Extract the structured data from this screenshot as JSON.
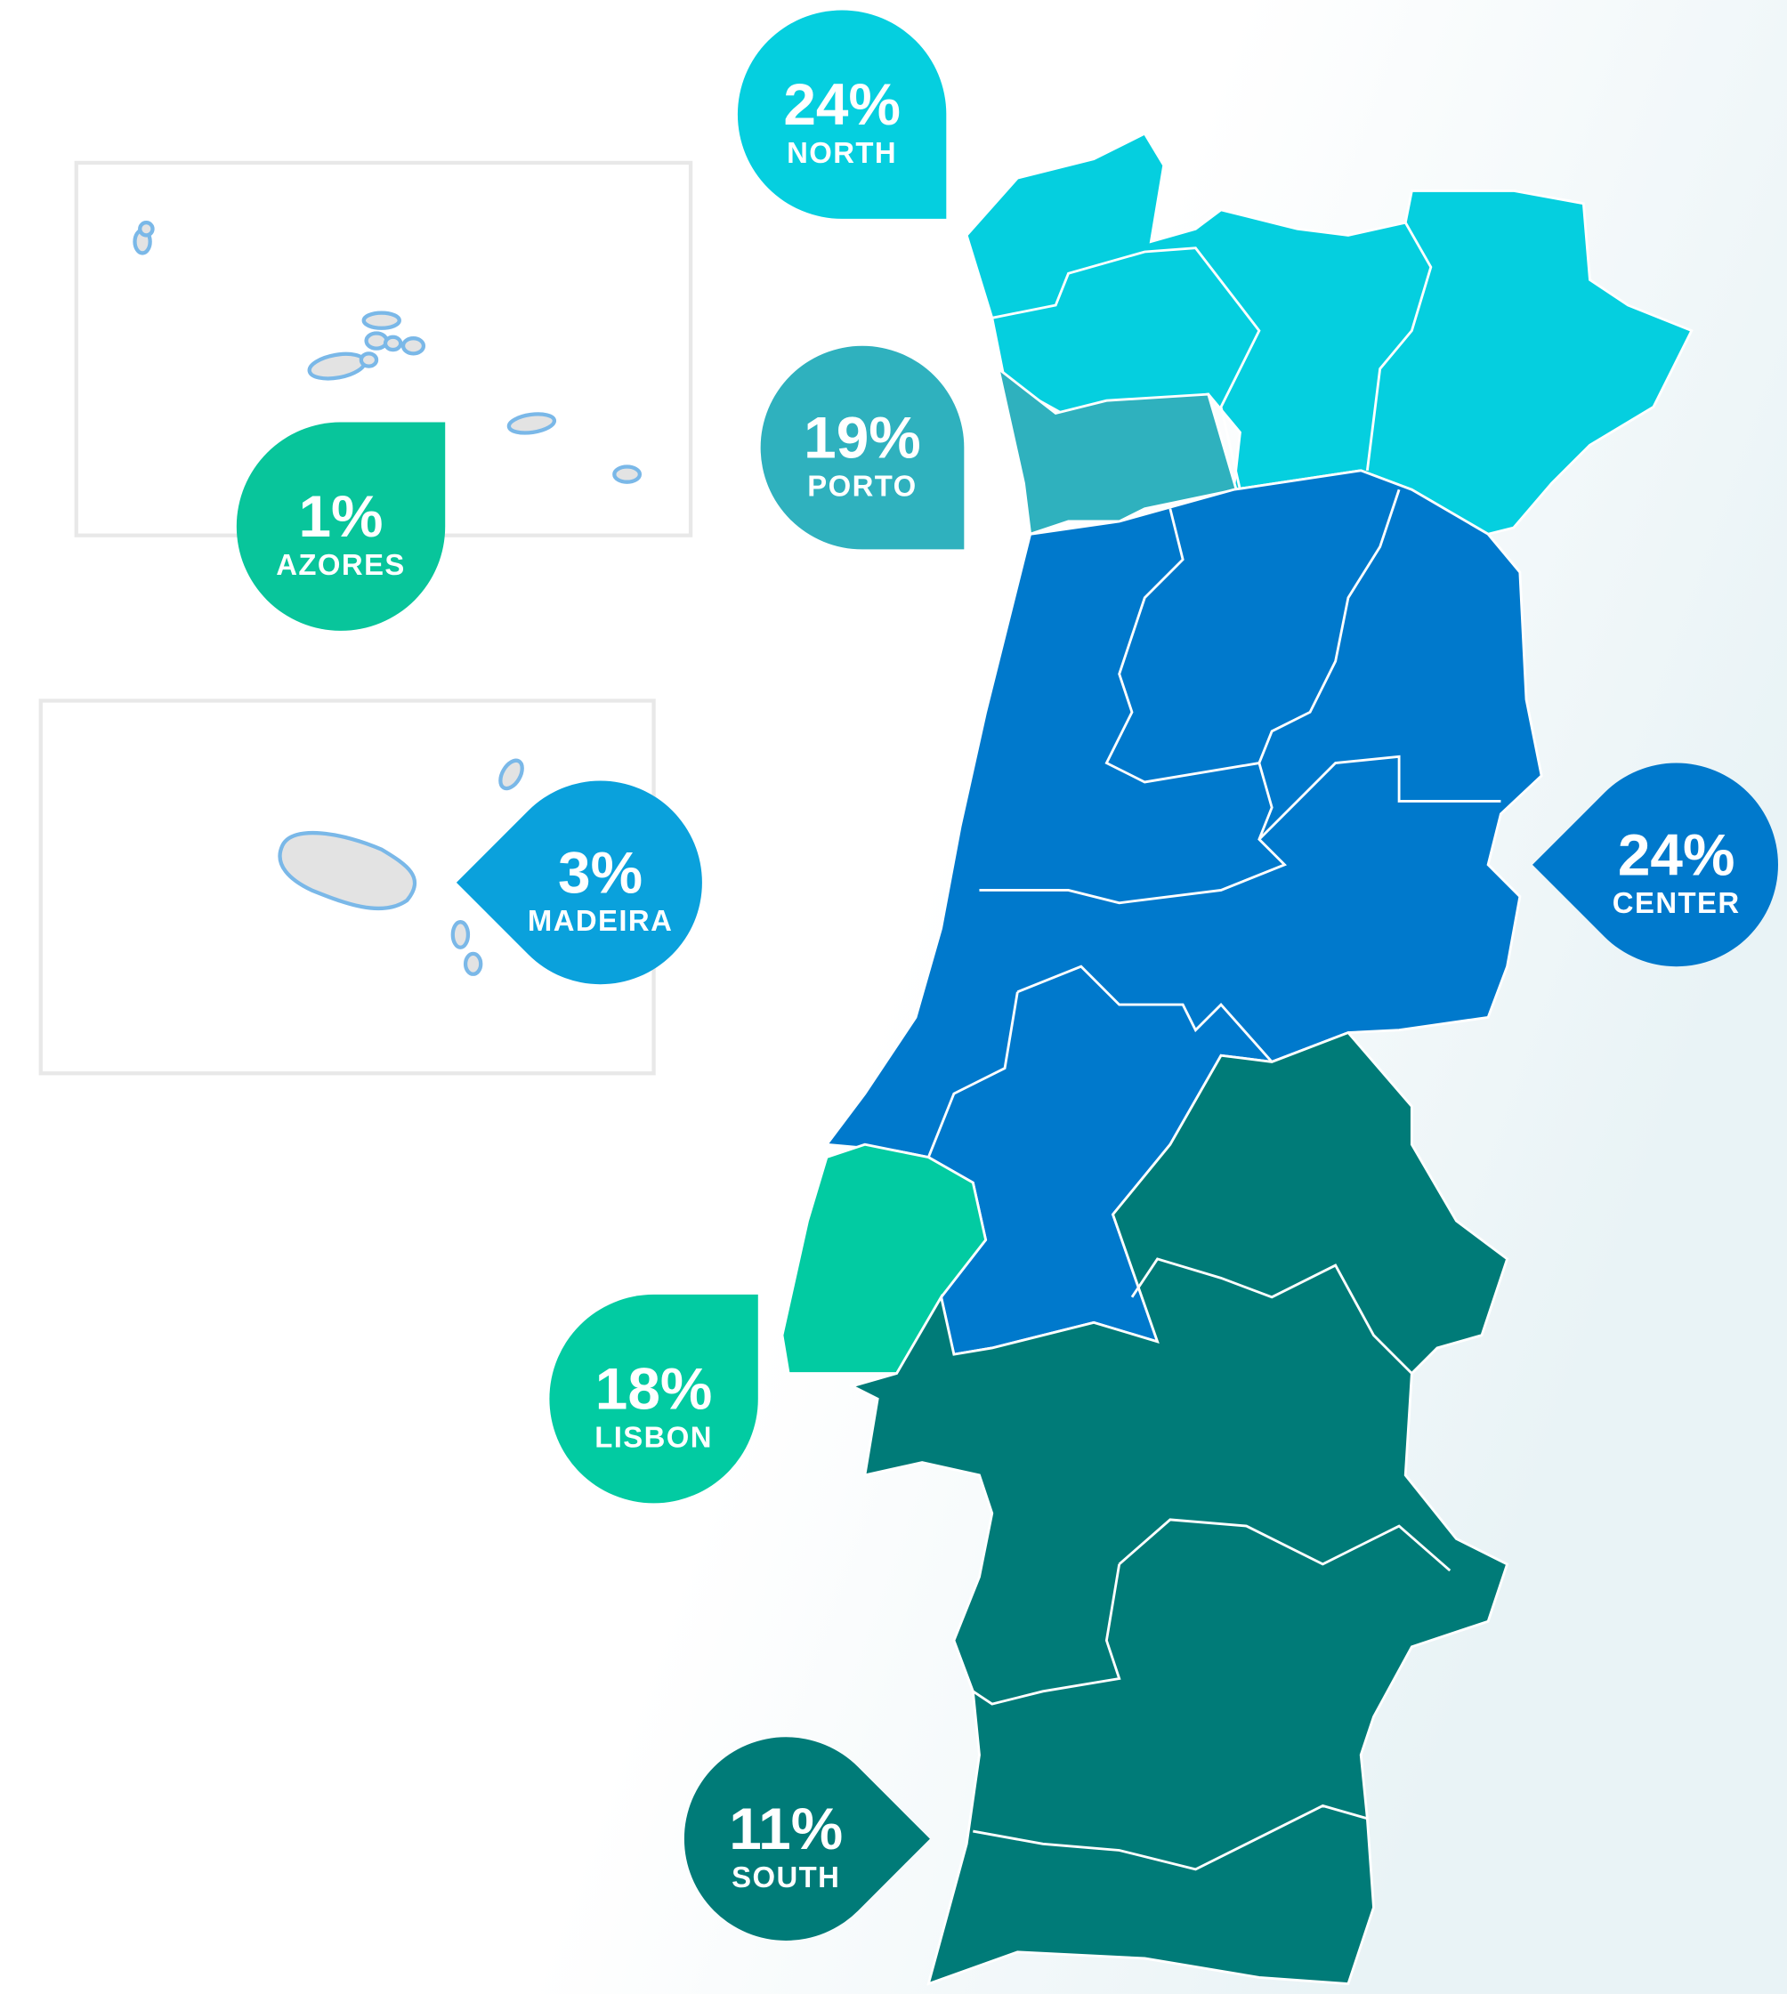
{
  "regions": [
    {
      "name": "NORTH",
      "value": 24,
      "value_label": "24%",
      "color": "#05cfdf"
    },
    {
      "name": "PORTO",
      "value": 19,
      "value_label": "19%",
      "color": "#2fb1be"
    },
    {
      "name": "AZORES",
      "value": 1,
      "value_label": "1%",
      "color": "#08c59b"
    },
    {
      "name": "MADEIRA",
      "value": 3,
      "value_label": "3%",
      "color": "#0aa1dc"
    },
    {
      "name": "CENTER",
      "value": 24,
      "value_label": "24%",
      "color": "#0079cc"
    },
    {
      "name": "LISBON",
      "value": 18,
      "value_label": "18%",
      "color": "#02cba2"
    },
    {
      "name": "SOUTH",
      "value": 11,
      "value_label": "11%",
      "color": "#007b78"
    }
  ]
}
